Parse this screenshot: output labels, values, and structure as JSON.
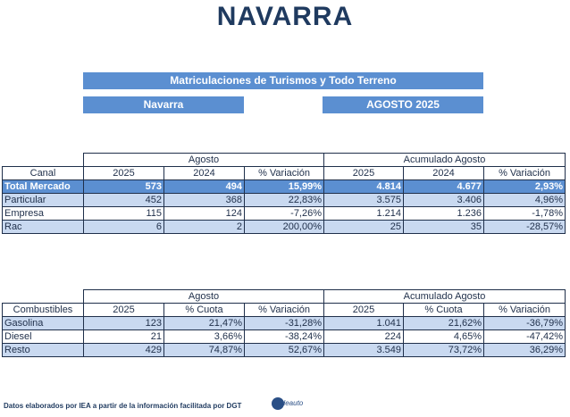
{
  "title": "NAVARRA",
  "banner": "Matriculaciones de Turismos y Todo Terreno",
  "region_label": "Navarra",
  "period_label": "AGOSTO 2025",
  "table1": {
    "group_left": "Agosto",
    "group_right": "Acumulado Agosto",
    "headers": [
      "Canal",
      "2025",
      "2024",
      "% Variación",
      "2025",
      "2024",
      "% Variación"
    ],
    "rows": [
      [
        "Total Mercado",
        "573",
        "494",
        "15,99%",
        "4.814",
        "4.677",
        "2,93%"
      ],
      [
        "Particular",
        "452",
        "368",
        "22,83%",
        "3.575",
        "3.406",
        "4,96%"
      ],
      [
        "Empresa",
        "115",
        "124",
        "-7,26%",
        "1.214",
        "1.236",
        "-1,78%"
      ],
      [
        "Rac",
        "6",
        "2",
        "200,00%",
        "25",
        "35",
        "-28,57%"
      ]
    ]
  },
  "table2": {
    "group_left": "Agosto",
    "group_right": "Acumulado Agosto",
    "headers": [
      "Combustibles",
      "2025",
      "% Cuota",
      "% Variación",
      "2025",
      "% Cuota",
      "% Variación"
    ],
    "rows": [
      [
        "Gasolina",
        "123",
        "21,47%",
        "-31,28%",
        "1.041",
        "21,62%",
        "-36,79%"
      ],
      [
        "Diesel",
        "21",
        "3,66%",
        "-38,24%",
        "224",
        "4,65%",
        "-47,42%"
      ],
      [
        "Resto",
        "429",
        "74,87%",
        "52,67%",
        "3.549",
        "73,72%",
        "36,29%"
      ]
    ]
  },
  "footer": "Datos elaborados por IEA a partir de la información facilitada por DGT",
  "logo_text": "ideauto",
  "colors": {
    "accent": "#5b8fd1",
    "light_row": "#c9d9f0",
    "title": "#1f3a5f"
  }
}
